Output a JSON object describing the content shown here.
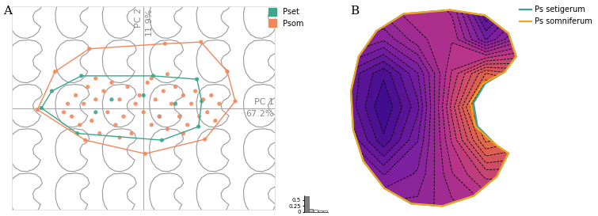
{
  "chart_data": [
    {
      "type": "scatter",
      "title": "A",
      "x_label": "PC 1",
      "x_label_2": "67.2%",
      "y_label": "PC 2",
      "y_label_2": "11.9%",
      "xlim": [
        -1.65,
        1.65
      ],
      "ylim": [
        -1.2,
        1.2
      ],
      "xticks": [],
      "yticks": [],
      "tick_labels": false,
      "legend": "upper right",
      "series": [
        {
          "name": "Pset",
          "color": "#3aa68c",
          "x": [
            -1.28,
            -1.15,
            -0.78,
            0.12,
            0.67,
            0.73,
            0.69,
            0.23,
            -0.83,
            -0.4,
            0.2,
            0.0,
            -0.6,
            0.4
          ],
          "y": [
            0.0,
            0.2,
            0.38,
            0.38,
            0.34,
            0.08,
            -0.22,
            -0.38,
            -0.3,
            0.1,
            -0.1,
            0.15,
            -0.05,
            0.05
          ]
        },
        {
          "name": "Psom",
          "color": "#f4875a",
          "x": [
            -1.33,
            -1.11,
            -0.68,
            0.27,
            0.72,
            1.05,
            1.15,
            0.77,
            0.02,
            -0.73,
            -0.95,
            -0.9,
            -0.85,
            -0.8,
            -0.75,
            -0.7,
            -0.65,
            -0.6,
            -0.55,
            -0.5,
            -0.45,
            -0.4,
            -0.35,
            -0.3,
            -0.25,
            -0.2,
            -0.15,
            -0.1,
            -0.05,
            0.0,
            0.05,
            0.1,
            0.15,
            0.2,
            0.25,
            0.3,
            0.35,
            0.4,
            0.45,
            0.5,
            0.55,
            0.6,
            0.65,
            0.7,
            0.75,
            0.8,
            0.85,
            0.9,
            0.95,
            -1.0,
            -0.3,
            0.1,
            0.5,
            -0.6,
            0.3
          ],
          "y": [
            -0.02,
            0.43,
            0.7,
            0.76,
            0.78,
            0.43,
            0.08,
            -0.37,
            -0.54,
            -0.38,
            0.05,
            -0.1,
            0.15,
            -0.2,
            0.05,
            0.25,
            -0.15,
            0.1,
            -0.3,
            0.2,
            -0.05,
            0.3,
            -0.2,
            0.1,
            -0.1,
            0.25,
            -0.3,
            0.05,
            0.15,
            -0.05,
            0.3,
            -0.2,
            0.1,
            -0.1,
            0.2,
            -0.25,
            0.05,
            0.25,
            -0.1,
            0.15,
            -0.2,
            0.05,
            0.2,
            -0.1,
            0.1,
            -0.05,
            0.15,
            -0.15,
            0.05,
            -0.05,
            -0.35,
            0.35,
            -0.3,
            0.35,
            0.4
          ]
        }
      ]
    },
    {
      "type": "bar",
      "categories": [
        null,
        null,
        null,
        null,
        null
      ],
      "values": [
        0.672,
        0.119,
        0.1,
        0.06,
        0.04
      ],
      "colors": [
        "#7f7f7f",
        "#bfbfbf",
        "#ffffff",
        "#ffffff",
        "#ffffff"
      ],
      "ylim": [
        0,
        0.7
      ],
      "yticks": [
        0,
        0.25,
        0.5
      ],
      "tick_labels": "y"
    },
    {
      "type": "shape",
      "title": "B",
      "legend": "upper right",
      "series": [
        {
          "name": "Ps setigerum",
          "color": "#3a9e9a",
          "x": [
            -0.4,
            0.2,
            0.65,
            0.95,
            1.05,
            0.9,
            0.65,
            0.5,
            0.55,
            0.8,
            0.95,
            0.8,
            0.5,
            0.1,
            -0.3,
            -0.65,
            -0.92,
            -1.05,
            -1.08,
            -0.98,
            -0.75
          ],
          "y": [
            1.2,
            1.25,
            1.18,
            0.95,
            0.65,
            0.45,
            0.3,
            0.05,
            -0.25,
            -0.5,
            -0.6,
            -0.9,
            -1.15,
            -1.28,
            -1.25,
            -1.05,
            -0.7,
            -0.3,
            0.2,
            0.65,
            0.98
          ]
        },
        {
          "name": "Ps somniferum",
          "color": "#f5a31a",
          "x": [
            -0.4,
            0.2,
            0.65,
            0.95,
            1.05,
            0.9,
            0.62,
            0.46,
            0.52,
            0.8,
            0.95,
            0.8,
            0.5,
            0.1,
            -0.3,
            -0.65,
            -0.92,
            -1.05,
            -1.08,
            -0.98,
            -0.75
          ],
          "y": [
            1.2,
            1.25,
            1.18,
            0.95,
            0.65,
            0.45,
            0.3,
            0.05,
            -0.25,
            -0.5,
            -0.6,
            -0.9,
            -1.15,
            -1.28,
            -1.25,
            -1.05,
            -0.7,
            -0.3,
            0.2,
            0.65,
            0.98
          ]
        }
      ],
      "cells_x": [
        -1.1,
        -0.66,
        -0.22,
        0.22,
        0.66,
        1.1
      ],
      "cells_y": [
        1.3,
        0.87,
        0.43,
        0.0,
        -0.43,
        -0.87,
        -1.3
      ],
      "cells": [
        [
          0.45,
          0.45,
          0.5,
          0.45,
          0.15,
          0.3
        ],
        [
          0.4,
          0.35,
          0.45,
          0.5,
          0.3,
          0.45
        ],
        [
          0.25,
          0.15,
          0.3,
          0.55,
          0.75,
          0.7
        ],
        [
          0.25,
          0.1,
          0.25,
          0.6,
          0.95,
          0.9
        ],
        [
          0.3,
          0.15,
          0.3,
          0.55,
          0.8,
          0.75
        ],
        [
          0.4,
          0.3,
          0.35,
          0.5,
          0.6,
          0.6
        ],
        [
          0.45,
          0.4,
          0.4,
          0.45,
          0.5,
          0.5
        ]
      ]
    }
  ]
}
